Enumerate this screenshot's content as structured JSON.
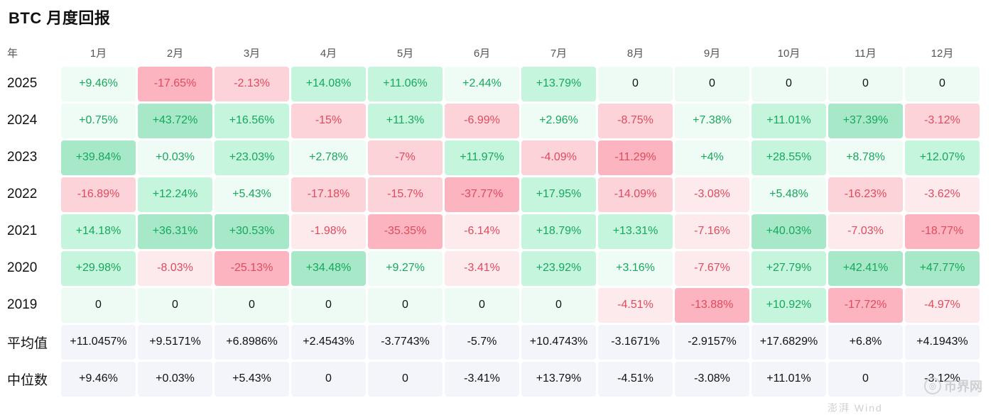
{
  "title": "BTC 月度回报",
  "header": {
    "year_label": "年",
    "months": [
      "1月",
      "2月",
      "3月",
      "4月",
      "5月",
      "6月",
      "7月",
      "8月",
      "9月",
      "10月",
      "11月",
      "12月"
    ]
  },
  "rows": [
    {
      "label": "2025",
      "cells": [
        {
          "v": "+9.46%",
          "c": "g1"
        },
        {
          "v": "-17.65%",
          "c": "r3"
        },
        {
          "v": "-2.13%",
          "c": "r2"
        },
        {
          "v": "+14.08%",
          "c": "g2"
        },
        {
          "v": "+11.06%",
          "c": "g2"
        },
        {
          "v": "+2.44%",
          "c": "g1"
        },
        {
          "v": "+13.79%",
          "c": "g2"
        },
        {
          "v": "0",
          "c": "z"
        },
        {
          "v": "0",
          "c": "z"
        },
        {
          "v": "0",
          "c": "z"
        },
        {
          "v": "0",
          "c": "z"
        },
        {
          "v": "0",
          "c": "z"
        }
      ]
    },
    {
      "label": "2024",
      "cells": [
        {
          "v": "+0.75%",
          "c": "g1"
        },
        {
          "v": "+43.72%",
          "c": "g3"
        },
        {
          "v": "+16.56%",
          "c": "g2"
        },
        {
          "v": "-15%",
          "c": "r2"
        },
        {
          "v": "+11.3%",
          "c": "g2"
        },
        {
          "v": "-6.99%",
          "c": "r2"
        },
        {
          "v": "+2.96%",
          "c": "g1"
        },
        {
          "v": "-8.75%",
          "c": "r2"
        },
        {
          "v": "+7.38%",
          "c": "g1"
        },
        {
          "v": "+11.01%",
          "c": "g2"
        },
        {
          "v": "+37.39%",
          "c": "g3"
        },
        {
          "v": "-3.12%",
          "c": "r2"
        }
      ]
    },
    {
      "label": "2023",
      "cells": [
        {
          "v": "+39.84%",
          "c": "g3"
        },
        {
          "v": "+0.03%",
          "c": "g1"
        },
        {
          "v": "+23.03%",
          "c": "g2"
        },
        {
          "v": "+2.78%",
          "c": "g1"
        },
        {
          "v": "-7%",
          "c": "r2"
        },
        {
          "v": "+11.97%",
          "c": "g2"
        },
        {
          "v": "-4.09%",
          "c": "r2"
        },
        {
          "v": "-11.29%",
          "c": "r3"
        },
        {
          "v": "+4%",
          "c": "g1"
        },
        {
          "v": "+28.55%",
          "c": "g2"
        },
        {
          "v": "+8.78%",
          "c": "g1"
        },
        {
          "v": "+12.07%",
          "c": "g2"
        }
      ]
    },
    {
      "label": "2022",
      "cells": [
        {
          "v": "-16.89%",
          "c": "r2"
        },
        {
          "v": "+12.24%",
          "c": "g2"
        },
        {
          "v": "+5.43%",
          "c": "g1"
        },
        {
          "v": "-17.18%",
          "c": "r2"
        },
        {
          "v": "-15.7%",
          "c": "r2"
        },
        {
          "v": "-37.77%",
          "c": "r3"
        },
        {
          "v": "+17.95%",
          "c": "g2"
        },
        {
          "v": "-14.09%",
          "c": "r2"
        },
        {
          "v": "-3.08%",
          "c": "r1"
        },
        {
          "v": "+5.48%",
          "c": "g1"
        },
        {
          "v": "-16.23%",
          "c": "r2"
        },
        {
          "v": "-3.62%",
          "c": "r1"
        }
      ]
    },
    {
      "label": "2021",
      "cells": [
        {
          "v": "+14.18%",
          "c": "g2"
        },
        {
          "v": "+36.31%",
          "c": "g3"
        },
        {
          "v": "+30.53%",
          "c": "g3"
        },
        {
          "v": "-1.98%",
          "c": "r1"
        },
        {
          "v": "-35.35%",
          "c": "r3"
        },
        {
          "v": "-6.14%",
          "c": "r1"
        },
        {
          "v": "+18.79%",
          "c": "g2"
        },
        {
          "v": "+13.31%",
          "c": "g2"
        },
        {
          "v": "-7.16%",
          "c": "r1"
        },
        {
          "v": "+40.03%",
          "c": "g3"
        },
        {
          "v": "-7.03%",
          "c": "r1"
        },
        {
          "v": "-18.77%",
          "c": "r3"
        }
      ]
    },
    {
      "label": "2020",
      "cells": [
        {
          "v": "+29.98%",
          "c": "g2"
        },
        {
          "v": "-8.03%",
          "c": "r1"
        },
        {
          "v": "-25.13%",
          "c": "r3"
        },
        {
          "v": "+34.48%",
          "c": "g3"
        },
        {
          "v": "+9.27%",
          "c": "g1"
        },
        {
          "v": "-3.41%",
          "c": "r1"
        },
        {
          "v": "+23.92%",
          "c": "g2"
        },
        {
          "v": "+3.16%",
          "c": "g1"
        },
        {
          "v": "-7.67%",
          "c": "r1"
        },
        {
          "v": "+27.79%",
          "c": "g2"
        },
        {
          "v": "+42.41%",
          "c": "g3"
        },
        {
          "v": "+47.77%",
          "c": "g3"
        }
      ]
    },
    {
      "label": "2019",
      "cells": [
        {
          "v": "0",
          "c": "z"
        },
        {
          "v": "0",
          "c": "z"
        },
        {
          "v": "0",
          "c": "z"
        },
        {
          "v": "0",
          "c": "z"
        },
        {
          "v": "0",
          "c": "z"
        },
        {
          "v": "0",
          "c": "z"
        },
        {
          "v": "0",
          "c": "z"
        },
        {
          "v": "-4.51%",
          "c": "r1"
        },
        {
          "v": "-13.88%",
          "c": "r3"
        },
        {
          "v": "+10.92%",
          "c": "g2"
        },
        {
          "v": "-17.72%",
          "c": "r3"
        },
        {
          "v": "-4.97%",
          "c": "r1"
        }
      ]
    },
    {
      "label": "平均值",
      "cells": [
        {
          "v": "+11.0457%",
          "c": "s"
        },
        {
          "v": "+9.5171%",
          "c": "s"
        },
        {
          "v": "+6.8986%",
          "c": "s"
        },
        {
          "v": "+2.4543%",
          "c": "s"
        },
        {
          "v": "-3.7743%",
          "c": "s"
        },
        {
          "v": "-5.7%",
          "c": "s"
        },
        {
          "v": "+10.4743%",
          "c": "s"
        },
        {
          "v": "-3.1671%",
          "c": "s"
        },
        {
          "v": "-2.9157%",
          "c": "s"
        },
        {
          "v": "+17.6829%",
          "c": "s"
        },
        {
          "v": "+6.8%",
          "c": "s"
        },
        {
          "v": "+4.1943%",
          "c": "s"
        }
      ]
    },
    {
      "label": "中位数",
      "cells": [
        {
          "v": "+9.46%",
          "c": "s"
        },
        {
          "v": "+0.03%",
          "c": "s"
        },
        {
          "v": "+5.43%",
          "c": "s"
        },
        {
          "v": "0",
          "c": "s"
        },
        {
          "v": "0",
          "c": "s"
        },
        {
          "v": "-3.41%",
          "c": "s"
        },
        {
          "v": "+13.79%",
          "c": "s"
        },
        {
          "v": "-4.51%",
          "c": "s"
        },
        {
          "v": "-3.08%",
          "c": "s"
        },
        {
          "v": "+11.01%",
          "c": "s"
        },
        {
          "v": "0",
          "c": "s"
        },
        {
          "v": "-3.12%",
          "c": "s"
        }
      ]
    }
  ],
  "colors": {
    "positive_text": "#16a85c",
    "negative_text": "#e04a5c"
  },
  "watermark": {
    "icon": "watermark-logo-icon",
    "text": "币界网",
    "bottom_text": "澎湃 Wind"
  }
}
